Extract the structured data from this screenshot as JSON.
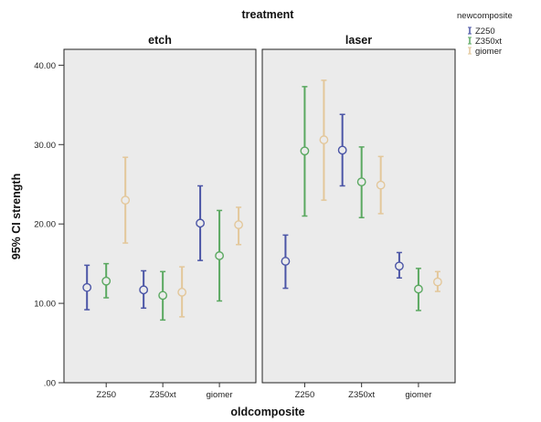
{
  "chart_data": {
    "type": "scatter",
    "subtype": "error-bar",
    "title": "treatment",
    "panels": [
      "etch",
      "laser"
    ],
    "xlabel": "oldcomposite",
    "ylabel": "95% CI strength",
    "categories": [
      "Z250",
      "Z350xt",
      "giomer"
    ],
    "y_ticks": [
      ".00",
      "10.00",
      "20.00",
      "30.00",
      "40.00"
    ],
    "ylim": [
      0,
      42
    ],
    "legend_title": "newcomposite",
    "legend_position": "top-right",
    "grid": false,
    "series": [
      {
        "name": "Z250",
        "color": "#4b55a6",
        "panels": {
          "etch": [
            {
              "mean": 12.0,
              "low": 9.2,
              "high": 14.8
            },
            {
              "mean": 11.7,
              "low": 9.4,
              "high": 14.1
            },
            {
              "mean": 20.1,
              "low": 15.4,
              "high": 24.8
            }
          ],
          "laser": [
            {
              "mean": 15.3,
              "low": 11.9,
              "high": 18.6
            },
            {
              "mean": 29.3,
              "low": 24.8,
              "high": 33.8
            },
            {
              "mean": 14.7,
              "low": 13.2,
              "high": 16.4
            }
          ]
        }
      },
      {
        "name": "Z350xt",
        "color": "#5aa860",
        "panels": {
          "etch": [
            {
              "mean": 12.8,
              "low": 10.7,
              "high": 15.0
            },
            {
              "mean": 11.0,
              "low": 7.9,
              "high": 14.0
            },
            {
              "mean": 16.0,
              "low": 10.3,
              "high": 21.7
            }
          ],
          "laser": [
            {
              "mean": 29.2,
              "low": 21.0,
              "high": 37.3
            },
            {
              "mean": 25.3,
              "low": 20.8,
              "high": 29.7
            },
            {
              "mean": 11.8,
              "low": 9.1,
              "high": 14.4
            }
          ]
        }
      },
      {
        "name": "giomer",
        "color": "#e3c79a",
        "panels": {
          "etch": [
            {
              "mean": 23.0,
              "low": 17.6,
              "high": 28.4
            },
            {
              "mean": 11.4,
              "low": 8.3,
              "high": 14.6
            },
            {
              "mean": 19.9,
              "low": 17.4,
              "high": 22.1
            }
          ],
          "laser": [
            {
              "mean": 30.6,
              "low": 23.0,
              "high": 38.1
            },
            {
              "mean": 24.9,
              "low": 21.3,
              "high": 28.5
            },
            {
              "mean": 12.7,
              "low": 11.5,
              "high": 14.0
            }
          ]
        }
      }
    ]
  }
}
